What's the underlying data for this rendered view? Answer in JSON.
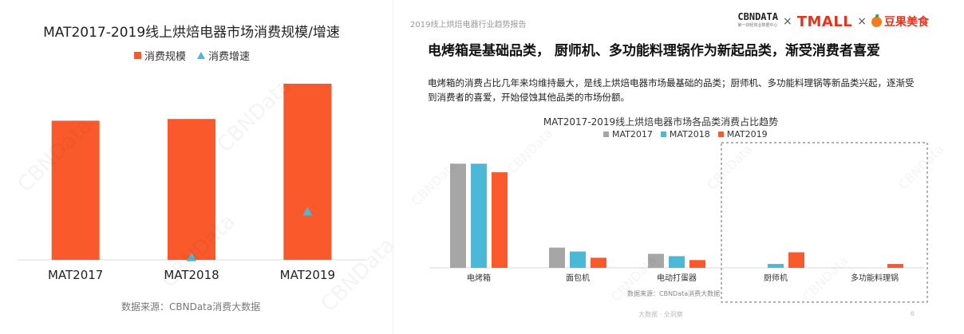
{
  "watermark": "CBNData",
  "colors": {
    "orange": "#fa5a2b",
    "gray": "#a6a6a6",
    "blue": "#4ab8d6",
    "brand_red": "#e8331c"
  },
  "left": {
    "legend": {
      "bar": "消费规模",
      "marker": "消费增速"
    },
    "source": "数据来源：CBNData消费大数据"
  },
  "right": {
    "report_header": "2019线上烘焙电器行业趋势报告",
    "brand": {
      "cbn": "CBNDATA",
      "cbn_sub": "第一财经商业数据中心",
      "tmall": "TMALL",
      "douguo": "豆果美食",
      "x": "×"
    },
    "headline": "电烤箱是基础品类，  厨师机、多功能料理锅作为新起品类，渐受消费者喜爱",
    "description": "电烤箱的消费占比几年来均维持最大，是线上烘焙电器市场最基础的品类；厨师机、多功能料理锅等新品类兴起，逐渐受到消费者的喜爱，开始侵蚀其他品类的市场份额。",
    "source": "数据来源：CBNData消费大数据",
    "footer": "大数据 · 全洞察",
    "page": "6"
  },
  "chart_data": [
    {
      "type": "bar",
      "title": "MAT2017-2019线上烘焙电器市场消费规模/增速",
      "categories": [
        "MAT2017",
        "MAT2018",
        "MAT2019"
      ],
      "series": [
        {
          "name": "消费规模",
          "kind": "bar",
          "values": [
            79,
            80,
            100
          ]
        },
        {
          "name": "消费增速",
          "kind": "marker",
          "values": [
            null,
            1,
            27
          ]
        }
      ],
      "ylim": [
        0,
        100
      ],
      "grid": false,
      "legend": "top",
      "xlabel": "",
      "ylabel": ""
    },
    {
      "type": "bar",
      "title": "MAT2017-2019线上烘焙电器市场各品类消费占比趋势",
      "categories": [
        "电烤箱",
        "面包机",
        "电动打蛋器",
        "厨师机",
        "多功能料理锅"
      ],
      "series": [
        {
          "name": "MAT2017",
          "values": [
            67,
            13,
            9,
            0,
            0
          ]
        },
        {
          "name": "MAT2018",
          "values": [
            67,
            10.5,
            7.5,
            2.5,
            0
          ]
        },
        {
          "name": "MAT2019",
          "values": [
            61.5,
            6.5,
            5,
            10,
            2.5
          ]
        }
      ],
      "ylim": [
        0,
        80
      ],
      "grid": false,
      "legend": "top",
      "highlight": [
        "厨师机",
        "多功能料理锅"
      ],
      "xlabel": "",
      "ylabel": ""
    }
  ]
}
